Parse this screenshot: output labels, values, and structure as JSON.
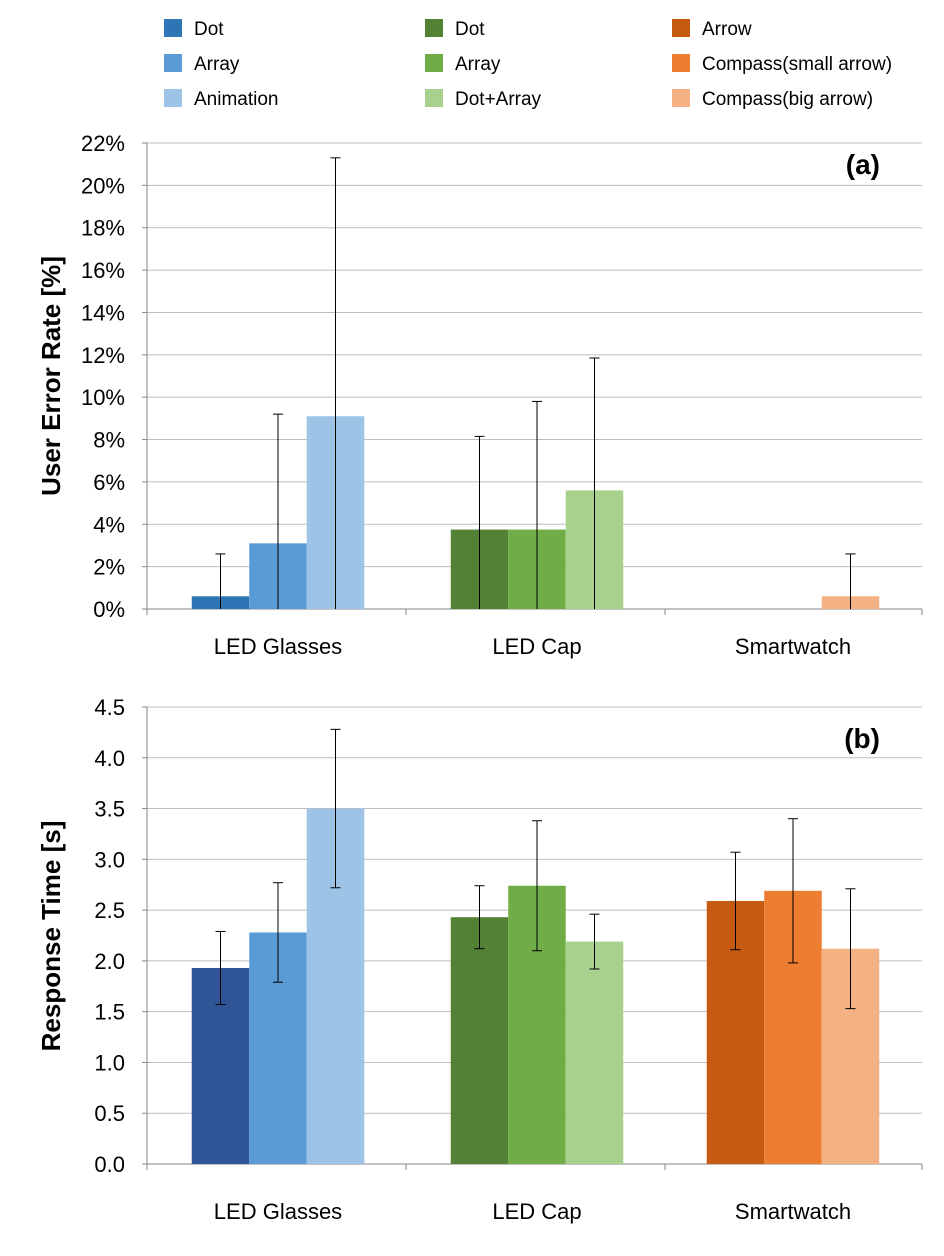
{
  "legend": {
    "columns": [
      [
        {
          "label": "Dot",
          "color": "#2E75B6"
        },
        {
          "label": "Array",
          "color": "#5B9BD5"
        },
        {
          "label": "Animation",
          "color": "#9DC3E6"
        }
      ],
      [
        {
          "label": "Dot",
          "color": "#538135"
        },
        {
          "label": "Array",
          "color": "#70AD47"
        },
        {
          "label": "Dot+Array",
          "color": "#A9D18E"
        }
      ],
      [
        {
          "label": "Arrow",
          "color": "#C55A11"
        },
        {
          "label": "Compass(small arrow)",
          "color": "#ED7D31"
        },
        {
          "label": "Compass(big arrow)",
          "color": "#F4B183"
        }
      ]
    ]
  },
  "chart_data": [
    {
      "type": "bar",
      "panel_label": "(a)",
      "ylabel": "User Error Rate [%]",
      "ylim": [
        0,
        22
      ],
      "yticks": [
        "0%",
        "2%",
        "4%",
        "6%",
        "8%",
        "10%",
        "12%",
        "14%",
        "16%",
        "18%",
        "20%",
        "22%"
      ],
      "grid": true,
      "categories": [
        "LED Glasses",
        "LED Cap",
        "Smartwatch"
      ],
      "groups": [
        {
          "category": "LED Glasses",
          "bars": [
            {
              "series": "Dot",
              "value": 0.6,
              "error": 2.0,
              "color": "#2E75B6"
            },
            {
              "series": "Array",
              "value": 3.1,
              "error": 6.1,
              "color": "#5B9BD5"
            },
            {
              "series": "Animation",
              "value": 9.1,
              "error": 12.2,
              "color": "#9DC3E6"
            }
          ]
        },
        {
          "category": "LED Cap",
          "bars": [
            {
              "series": "Dot",
              "value": 3.75,
              "error": 4.4,
              "color": "#538135"
            },
            {
              "series": "Array",
              "value": 3.75,
              "error": 6.05,
              "color": "#70AD47"
            },
            {
              "series": "Dot+Array",
              "value": 5.6,
              "error": 6.25,
              "color": "#A9D18E"
            }
          ]
        },
        {
          "category": "Smartwatch",
          "bars": [
            {
              "series": "Arrow",
              "value": 0,
              "error": 0,
              "color": "#C55A11"
            },
            {
              "series": "Compass(small arrow)",
              "value": 0,
              "error": 0,
              "color": "#ED7D31"
            },
            {
              "series": "Compass(big arrow)",
              "value": 0.6,
              "error": 2.0,
              "color": "#F4B183"
            }
          ]
        }
      ]
    },
    {
      "type": "bar",
      "panel_label": "(b)",
      "ylabel": "Response Time [s]",
      "ylim": [
        0,
        4.5
      ],
      "yticks": [
        "0.0",
        "0.5",
        "1.0",
        "1.5",
        "2.0",
        "2.5",
        "3.0",
        "3.5",
        "4.0",
        "4.5"
      ],
      "grid": true,
      "categories": [
        "LED Glasses",
        "LED Cap",
        "Smartwatch"
      ],
      "groups": [
        {
          "category": "LED Glasses",
          "bars": [
            {
              "series": "Dot",
              "value": 1.93,
              "error": 0.36,
              "color": "#2F5597"
            },
            {
              "series": "Array",
              "value": 2.28,
              "error": 0.49,
              "color": "#5B9BD5"
            },
            {
              "series": "Animation",
              "value": 3.5,
              "error": 0.78,
              "color": "#9DC3E6"
            }
          ]
        },
        {
          "category": "LED Cap",
          "bars": [
            {
              "series": "Dot",
              "value": 2.43,
              "error": 0.31,
              "color": "#538135"
            },
            {
              "series": "Array",
              "value": 2.74,
              "error": 0.64,
              "color": "#70AD47"
            },
            {
              "series": "Dot+Array",
              "value": 2.19,
              "error": 0.27,
              "color": "#A9D18E"
            }
          ]
        },
        {
          "category": "Smartwatch",
          "bars": [
            {
              "series": "Arrow",
              "value": 2.59,
              "error": 0.48,
              "color": "#C55A11"
            },
            {
              "series": "Compass(small arrow)",
              "value": 2.69,
              "error": 0.71,
              "color": "#ED7D31"
            },
            {
              "series": "Compass(big arrow)",
              "value": 2.12,
              "error": 0.59,
              "color": "#F4B183"
            }
          ]
        }
      ]
    }
  ]
}
